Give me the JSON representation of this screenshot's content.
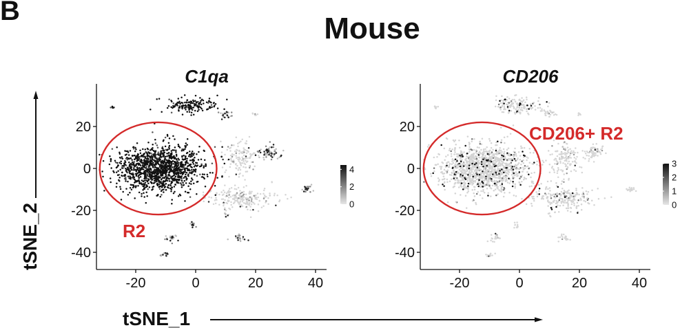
{
  "figure": {
    "panel_letter": "B",
    "suptitle": "Mouse",
    "shared_xlabel": "tSNE_1",
    "shared_ylabel": "tSNE_2",
    "colors": {
      "annotation_red": "#d42a2a",
      "high_expr": "#111111",
      "low_expr": "#d9d9d9"
    }
  },
  "chart_data": [
    {
      "type": "scatter",
      "title": "C1qa",
      "x_ticks": [
        -20,
        0,
        20,
        40
      ],
      "y_ticks": [
        20,
        0,
        -20,
        -40
      ],
      "xlim": [
        -33,
        43
      ],
      "ylim": [
        -45,
        37
      ],
      "colorbar": {
        "ticks": [
          4,
          2,
          0
        ],
        "range": [
          0,
          4.5
        ]
      },
      "annotation_ellipse": {
        "center": [
          -12.5,
          0
        ],
        "radius_x": 19.5,
        "radius_y": 22,
        "color": "#d42a2a"
      },
      "annotation_label": "R2",
      "clusters": [
        {
          "center": [
            -12,
            0
          ],
          "spread": [
            13,
            10
          ],
          "n": 1300,
          "expr": "high"
        },
        {
          "center": [
            -1,
            30
          ],
          "spread": [
            8,
            3.5
          ],
          "n": 150,
          "expr": "high"
        },
        {
          "center": [
            10,
            26
          ],
          "spread": [
            2.5,
            2
          ],
          "n": 25,
          "expr": "mixed"
        },
        {
          "center": [
            20,
            26
          ],
          "spread": [
            1,
            1
          ],
          "n": 6,
          "expr": "low"
        },
        {
          "center": [
            -28,
            29
          ],
          "spread": [
            0.8,
            1
          ],
          "n": 6,
          "expr": "high"
        },
        {
          "center": [
            15,
            5
          ],
          "spread": [
            5,
            7
          ],
          "n": 140,
          "expr": "low"
        },
        {
          "center": [
            25,
            8
          ],
          "spread": [
            3,
            3
          ],
          "n": 60,
          "expr": "mixed"
        },
        {
          "center": [
            15,
            -14
          ],
          "spread": [
            10,
            5
          ],
          "n": 220,
          "expr": "low"
        },
        {
          "center": [
            37,
            -10
          ],
          "spread": [
            1.5,
            1.5
          ],
          "n": 20,
          "expr": "mixed"
        },
        {
          "center": [
            -1,
            -27
          ],
          "spread": [
            1,
            1.5
          ],
          "n": 12,
          "expr": "mixed"
        },
        {
          "center": [
            -8,
            -33
          ],
          "spread": [
            2,
            2
          ],
          "n": 20,
          "expr": "mixed"
        },
        {
          "center": [
            15,
            -33
          ],
          "spread": [
            2,
            1.5
          ],
          "n": 20,
          "expr": "mixed"
        },
        {
          "center": [
            -10,
            -41
          ],
          "spread": [
            1.5,
            0.8
          ],
          "n": 12,
          "expr": "mixed"
        },
        {
          "center": [
            10,
            -22
          ],
          "spread": [
            1,
            1
          ],
          "n": 5,
          "expr": "mixed"
        }
      ]
    },
    {
      "type": "scatter",
      "title": "CD206",
      "x_ticks": [
        -20,
        0,
        20,
        40
      ],
      "y_ticks": [
        20,
        0,
        -20,
        -40
      ],
      "xlim": [
        -33,
        43
      ],
      "ylim": [
        -45,
        37
      ],
      "colorbar": {
        "ticks": [
          3,
          2,
          1,
          0
        ],
        "range": [
          0,
          3
        ]
      },
      "annotation_ellipse": {
        "center": [
          -12.5,
          0
        ],
        "radius_x": 19.5,
        "radius_y": 22,
        "color": "#d42a2a"
      },
      "annotation_label": "CD206+ R2",
      "clusters": [
        {
          "center": [
            -12,
            0
          ],
          "spread": [
            13,
            10
          ],
          "n": 1300,
          "expr": "sparse"
        },
        {
          "center": [
            -1,
            30
          ],
          "spread": [
            8,
            3.5
          ],
          "n": 150,
          "expr": "sparse"
        },
        {
          "center": [
            10,
            26
          ],
          "spread": [
            2.5,
            2
          ],
          "n": 25,
          "expr": "low"
        },
        {
          "center": [
            20,
            26
          ],
          "spread": [
            1,
            1
          ],
          "n": 6,
          "expr": "low"
        },
        {
          "center": [
            -28,
            29
          ],
          "spread": [
            0.8,
            1
          ],
          "n": 6,
          "expr": "low"
        },
        {
          "center": [
            15,
            5
          ],
          "spread": [
            5,
            7
          ],
          "n": 140,
          "expr": "low"
        },
        {
          "center": [
            25,
            8
          ],
          "spread": [
            3,
            3
          ],
          "n": 60,
          "expr": "low"
        },
        {
          "center": [
            15,
            -14
          ],
          "spread": [
            10,
            5
          ],
          "n": 220,
          "expr": "sparse"
        },
        {
          "center": [
            37,
            -10
          ],
          "spread": [
            1.5,
            1.5
          ],
          "n": 20,
          "expr": "low"
        },
        {
          "center": [
            -1,
            -27
          ],
          "spread": [
            1,
            1.5
          ],
          "n": 12,
          "expr": "low"
        },
        {
          "center": [
            -8,
            -33
          ],
          "spread": [
            2,
            2
          ],
          "n": 20,
          "expr": "low"
        },
        {
          "center": [
            15,
            -33
          ],
          "spread": [
            2,
            1.5
          ],
          "n": 20,
          "expr": "low"
        },
        {
          "center": [
            -10,
            -41
          ],
          "spread": [
            1.5,
            0.8
          ],
          "n": 12,
          "expr": "low"
        },
        {
          "center": [
            10,
            -22
          ],
          "spread": [
            1,
            1
          ],
          "n": 5,
          "expr": "low"
        }
      ]
    }
  ]
}
